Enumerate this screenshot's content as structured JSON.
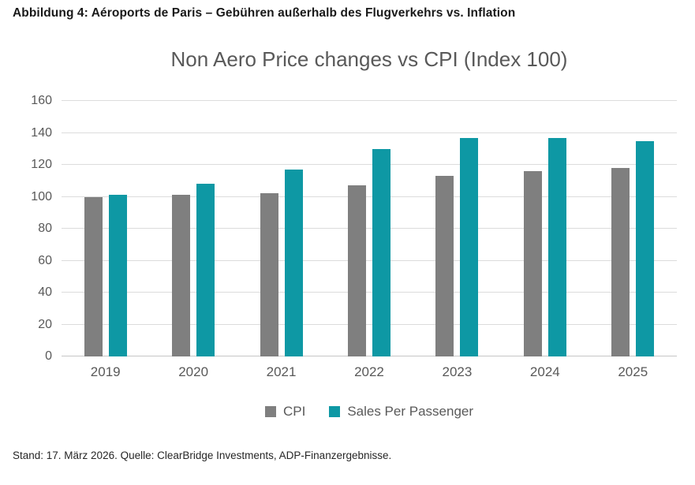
{
  "figure": {
    "heading": "Abbildung 4: Aéroports de Paris – Gebühren außerhalb des Flugverkehrs vs. Inflation",
    "source": "Stand: 17. März 2026. Quelle: ClearBridge Investments, ADP-Finanzergebnisse."
  },
  "chart_data": {
    "type": "bar",
    "title": "Non Aero Price changes vs CPI (Index 100)",
    "categories": [
      "2019",
      "2020",
      "2021",
      "2022",
      "2023",
      "2024",
      "2025"
    ],
    "series": [
      {
        "name": "CPI",
        "color": "#7f7f7f",
        "values": [
          100,
          101,
          102,
          107,
          113,
          116,
          118
        ]
      },
      {
        "name": "Sales Per Passenger",
        "color": "#0e98a4",
        "values": [
          101,
          108,
          117,
          130,
          137,
          137,
          135
        ]
      }
    ],
    "xlabel": "",
    "ylabel": "",
    "ylim": [
      0,
      160
    ],
    "ytick_step": 20,
    "grid": true,
    "legend_position": "bottom",
    "gridline_color": "#dcdcdc",
    "axis_text_color": "#595959",
    "title_color": "#595959"
  }
}
